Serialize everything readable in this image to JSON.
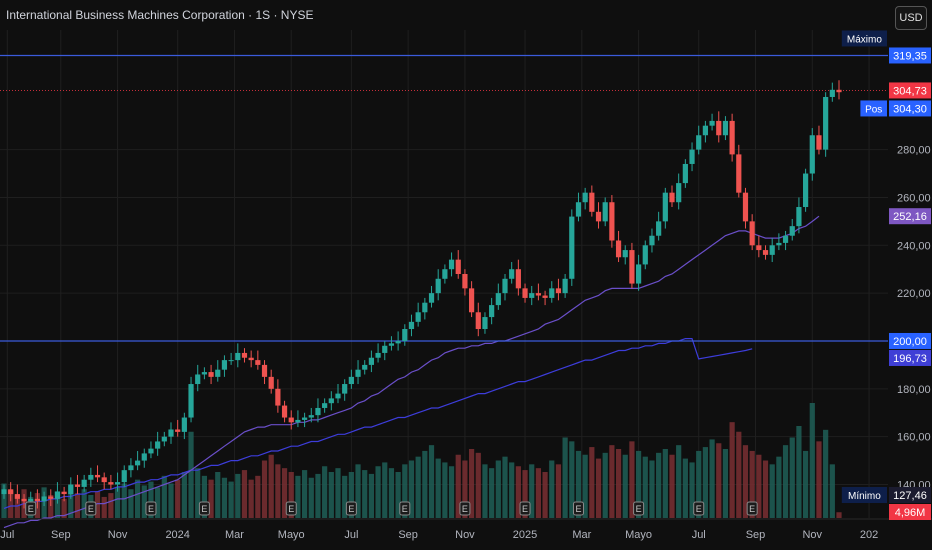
{
  "header": {
    "title": "International Business Machines Corporation · 1S · NYSE"
  },
  "currency_button": "USD",
  "chart_data": {
    "type": "candlestick",
    "y_axis": {
      "ticks": [
        140,
        160,
        180,
        200,
        220,
        240,
        260,
        280
      ],
      "tick_labels": [
        "140,00",
        "160,00",
        "180,00",
        "200,00",
        "220,00",
        "240,00",
        "260,00",
        "280,00"
      ],
      "range": [
        126,
        330
      ]
    },
    "x_axis": {
      "ticks": [
        {
          "label": "Jul",
          "x": 0.5
        },
        {
          "label": "Sep",
          "x": 8.5
        },
        {
          "label": "Nov",
          "x": 17
        },
        {
          "label": "2024",
          "x": 26
        },
        {
          "label": "Mar",
          "x": 34.5
        },
        {
          "label": "Mayo",
          "x": 43
        },
        {
          "label": "Jul",
          "x": 52
        },
        {
          "label": "Sep",
          "x": 60.5
        },
        {
          "label": "Nov",
          "x": 69
        },
        {
          "label": "2025",
          "x": 78
        },
        {
          "label": "Mar",
          "x": 86.5
        },
        {
          "label": "Mayo",
          "x": 95
        },
        {
          "label": "Jul",
          "x": 104
        },
        {
          "label": "Sep",
          "x": 112.5
        },
        {
          "label": "Nov",
          "x": 121
        },
        {
          "label": "202",
          "x": 129.5
        }
      ]
    },
    "close": [
      138,
      136,
      134,
      133,
      134,
      133,
      135,
      134,
      137,
      136,
      140,
      139,
      142,
      144,
      143,
      141,
      140,
      141,
      146,
      148,
      150,
      153,
      155,
      158,
      160,
      163,
      162,
      168,
      182,
      186,
      187,
      185,
      188,
      192,
      192,
      195,
      193,
      192,
      190,
      185,
      180,
      173,
      168,
      166,
      167,
      168,
      169,
      172,
      174,
      176,
      178,
      182,
      185,
      188,
      190,
      193,
      195,
      198,
      199,
      200,
      205,
      208,
      212,
      216,
      220,
      226,
      230,
      234,
      228,
      222,
      212,
      205,
      210,
      215,
      220,
      226,
      230,
      222,
      218,
      220,
      219,
      218,
      222,
      220,
      226,
      252,
      258,
      262,
      254,
      250,
      258,
      242,
      235,
      238,
      224,
      232,
      240,
      244,
      250,
      262,
      258,
      266,
      274,
      280,
      286,
      290,
      292,
      286,
      292,
      278,
      262,
      250,
      240,
      238,
      236,
      240,
      241,
      244,
      248,
      256,
      270,
      286,
      280,
      302,
      305,
      304
    ],
    "sma_short": [
      122,
      123,
      124,
      124,
      125,
      125,
      126,
      126,
      127,
      127,
      128,
      129,
      130,
      131,
      132,
      132,
      133,
      134,
      134,
      135,
      136,
      137,
      138,
      139,
      140,
      141,
      142,
      144,
      146,
      148,
      150,
      152,
      154,
      156,
      158,
      160,
      162,
      163,
      164,
      164,
      165,
      165,
      165,
      165,
      166,
      166,
      167,
      167,
      168,
      169,
      170,
      171,
      172,
      174,
      175,
      177,
      178,
      180,
      182,
      184,
      185,
      187,
      188,
      190,
      192,
      193,
      195,
      196,
      197,
      197,
      198,
      198,
      199,
      199,
      200,
      200,
      201,
      202,
      203,
      204,
      205,
      207,
      208,
      209,
      211,
      213,
      215,
      217,
      218,
      219,
      221,
      222,
      222,
      222,
      222,
      222,
      223,
      224,
      225,
      227,
      228,
      230,
      232,
      234,
      236,
      238,
      240,
      242,
      244,
      245,
      246,
      246,
      245,
      244,
      243,
      243,
      243,
      244,
      245,
      247,
      248,
      250,
      252.16
    ],
    "sma_long": [
      130,
      131,
      131,
      132,
      132,
      133,
      133,
      134,
      134,
      135,
      135,
      136,
      136,
      137,
      137,
      138,
      138,
      139,
      139,
      140,
      141,
      141,
      142,
      142,
      143,
      144,
      144,
      145,
      146,
      146,
      147,
      148,
      148,
      149,
      150,
      150,
      151,
      152,
      152,
      153,
      154,
      154,
      155,
      156,
      156,
      157,
      158,
      158,
      159,
      160,
      161,
      161,
      162,
      163,
      164,
      164,
      165,
      166,
      167,
      168,
      168,
      169,
      170,
      171,
      172,
      172,
      173,
      174,
      175,
      176,
      177,
      178,
      178,
      179,
      180,
      181,
      182,
      183,
      183,
      184,
      185,
      186,
      187,
      188,
      189,
      190,
      191,
      192,
      192,
      193,
      194,
      195,
      196,
      196,
      197,
      197,
      198,
      198,
      199,
      199,
      200,
      200,
      201,
      201,
      192.5,
      193,
      193.5,
      194,
      194.5,
      195,
      195.5,
      196,
      196.73
    ],
    "volume": [
      18,
      14,
      12,
      15,
      11,
      13,
      16,
      12,
      14,
      10,
      17,
      13,
      15,
      12,
      14,
      11,
      13,
      16,
      18,
      15,
      20,
      17,
      19,
      16,
      22,
      18,
      20,
      24,
      45,
      26,
      22,
      20,
      24,
      21,
      19,
      23,
      25,
      20,
      22,
      30,
      33,
      28,
      26,
      24,
      22,
      25,
      21,
      23,
      27,
      24,
      26,
      22,
      24,
      28,
      25,
      23,
      27,
      29,
      26,
      24,
      28,
      30,
      32,
      35,
      38,
      31,
      29,
      27,
      33,
      30,
      36,
      34,
      28,
      26,
      30,
      32,
      29,
      27,
      25,
      28,
      26,
      24,
      30,
      28,
      42,
      40,
      35,
      33,
      37,
      31,
      34,
      38,
      36,
      33,
      40,
      35,
      32,
      30,
      34,
      36,
      33,
      38,
      31,
      29,
      35,
      37,
      41,
      39,
      36,
      50,
      45,
      38,
      35,
      33,
      30,
      28,
      32,
      38,
      42,
      48,
      35,
      60,
      40,
      46,
      28,
      3
    ],
    "horizontal_lines": [
      {
        "value": 319.35
      },
      {
        "value": 200.0
      }
    ],
    "price_labels": [
      {
        "label": "Máximo",
        "value": "319,35",
        "y": 319.35,
        "color": "#2962ff",
        "tag_color": "#0e1f4a"
      },
      {
        "value": "304,73",
        "y": 304.73,
        "color": "#f23645"
      },
      {
        "label": "Pos",
        "value": "304,30",
        "y": 304.3,
        "color": "#2962ff"
      },
      {
        "value": "252,16",
        "y": 252.16,
        "color": "#7e57c2"
      },
      {
        "value": "200,00",
        "y": 200.0,
        "color": "#2962ff"
      },
      {
        "value": "196,73",
        "y": 196.73,
        "color": "#3f3fd6"
      },
      {
        "label": "Mínimo",
        "value": "127,46",
        "y": 127.46,
        "color": "#1b1b2f",
        "tag_color": "#0e1f4a"
      },
      {
        "value": "4,96M",
        "y": 126,
        "color": "#f23645"
      }
    ],
    "last_price_line": 304.73,
    "earnings_marker": "E",
    "earnings_idx": [
      4,
      13,
      22,
      30,
      43,
      52,
      60,
      69,
      78,
      86,
      95,
      104,
      112
    ]
  }
}
